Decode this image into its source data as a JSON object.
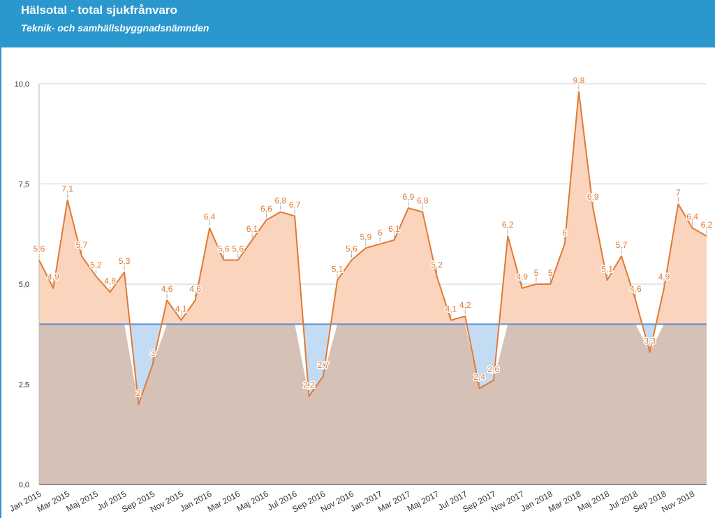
{
  "header": {
    "title": "Hälsotal - total sjukfrånvaro",
    "subtitle": "Teknik- och samhällsbyggnadsnämnden"
  },
  "chart_data": {
    "type": "area",
    "y_ticks": [
      "0,0",
      "2,5",
      "5,0",
      "7,5",
      "10,0"
    ],
    "ylim": [
      0,
      10
    ],
    "grid": true,
    "x_tick_labels": [
      "Jan 2015",
      "Mar 2015",
      "Maj 2015",
      "Jul 2015",
      "Sep 2015",
      "Nov 2015",
      "Jan 2016",
      "Mar 2016",
      "Maj 2016",
      "Jul 2016",
      "Sep 2016",
      "Nov 2016",
      "Jan 2017",
      "Mar 2017",
      "Maj 2017",
      "Jul 2017",
      "Sep 2017",
      "Nov 2017",
      "Jan 2018",
      "Mar 2018",
      "Maj 2018",
      "Jul 2018",
      "Sep 2018",
      "Nov 2018"
    ],
    "threshold": 4,
    "series": [
      {
        "values": [
          5.6,
          4.9,
          7.1,
          5.7,
          5.2,
          4.8,
          5.3,
          2,
          3,
          4.6,
          4.1,
          4.6,
          6.4,
          5.6,
          5.6,
          6.1,
          6.6,
          6.8,
          6.7,
          2.2,
          2.7,
          5.1,
          5.6,
          5.9,
          6,
          6.1,
          6.9,
          6.8,
          5.2,
          4.1,
          4.2,
          2.4,
          2.6,
          6.2,
          4.9,
          5,
          5,
          6,
          9.8,
          6.9,
          5.1,
          5.7,
          4.6,
          3.3,
          4.9,
          7,
          6.4,
          6.2
        ],
        "labels": [
          "5,6",
          "4,9",
          "7,1",
          "5,7",
          "5,2",
          "4,8",
          "5,3",
          "2",
          "3",
          "4,6",
          "4,1",
          "4,6",
          "6,4",
          "5,6",
          "5,6",
          "6,1",
          "6,6",
          "6,8",
          "6,7",
          "2,2",
          "2,7",
          "5,1",
          "5,6",
          "5,9",
          "6",
          "6,1",
          "6,9",
          "6,8",
          "5,2",
          "4,1",
          "4,2",
          "2,4",
          "2,6",
          "6,2",
          "4,9",
          "5",
          "5",
          "6",
          "9,8",
          "6,9",
          "5,1",
          "5,7",
          "4,6",
          "3,3",
          "4,9",
          "7",
          "6,4",
          "6,2"
        ]
      }
    ],
    "colors": {
      "line": "#e07a33",
      "area_above": "#fbd4bd",
      "area_below": "#c4dcf3",
      "base_fill": "#d6c1b7",
      "threshold_line": "#5b8fd1",
      "grid": "#cccccc"
    }
  }
}
